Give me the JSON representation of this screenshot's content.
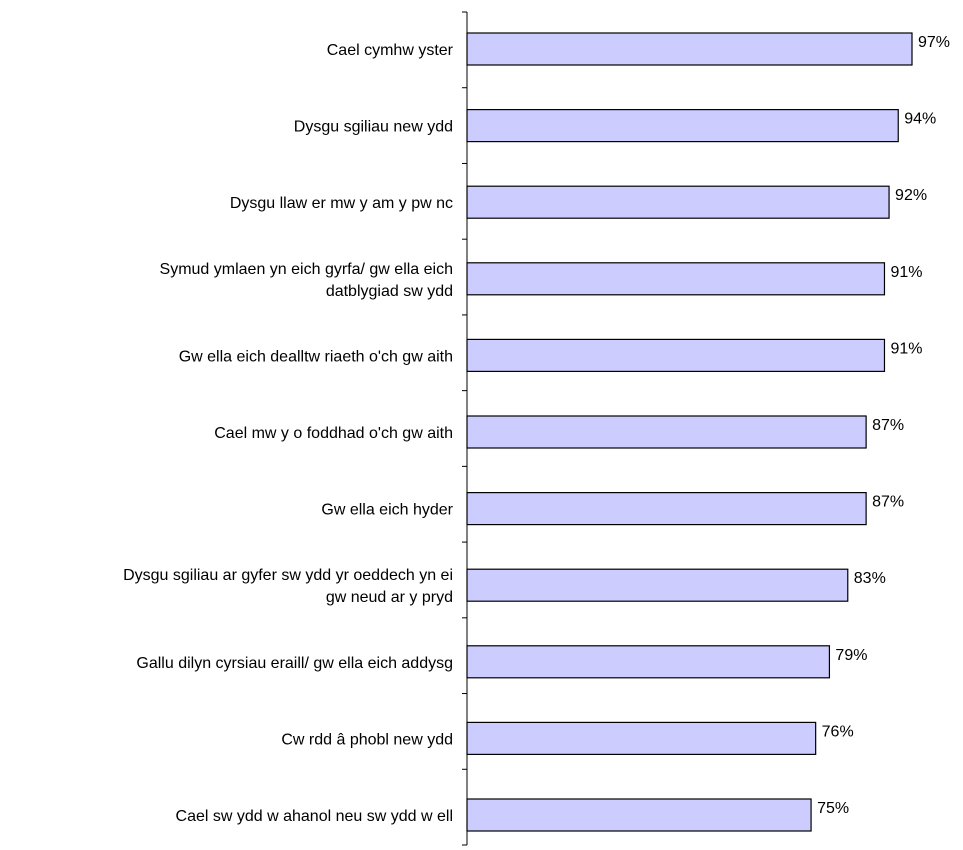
{
  "chart_data": {
    "type": "bar",
    "orientation": "horizontal",
    "title": "",
    "xlabel": "",
    "ylabel": "",
    "xlim": [
      0,
      100
    ],
    "grid": false,
    "legend": "none",
    "bar_color": "#ccccff",
    "bar_stroke": "#000000",
    "categories": [
      [
        "Cael cymhw yster"
      ],
      [
        "Dysgu sgiliau new ydd"
      ],
      [
        "Dysgu llaw er mw y am y pw nc"
      ],
      [
        "Symud ymlaen yn eich gyrfa/ gw ella eich",
        "datblygiad sw ydd"
      ],
      [
        "Gw ella eich dealltw riaeth o'ch gw aith"
      ],
      [
        "Cael mw y o foddhad o'ch gw aith"
      ],
      [
        "Gw ella eich hyder"
      ],
      [
        "Dysgu sgiliau ar gyfer sw ydd yr oeddech yn ei",
        "gw neud ar y pryd"
      ],
      [
        "Gallu dilyn cyrsiau eraill/ gw ella eich addysg"
      ],
      [
        "Cw rdd â phobl new ydd"
      ],
      [
        "Cael sw ydd w ahanol neu sw ydd w ell"
      ]
    ],
    "values": [
      97,
      94,
      92,
      91,
      91,
      87,
      87,
      83,
      79,
      76,
      75
    ],
    "value_labels": [
      "97%",
      "94%",
      "92%",
      "91%",
      "91%",
      "87%",
      "87%",
      "83%",
      "79%",
      "76%",
      "75%"
    ]
  }
}
